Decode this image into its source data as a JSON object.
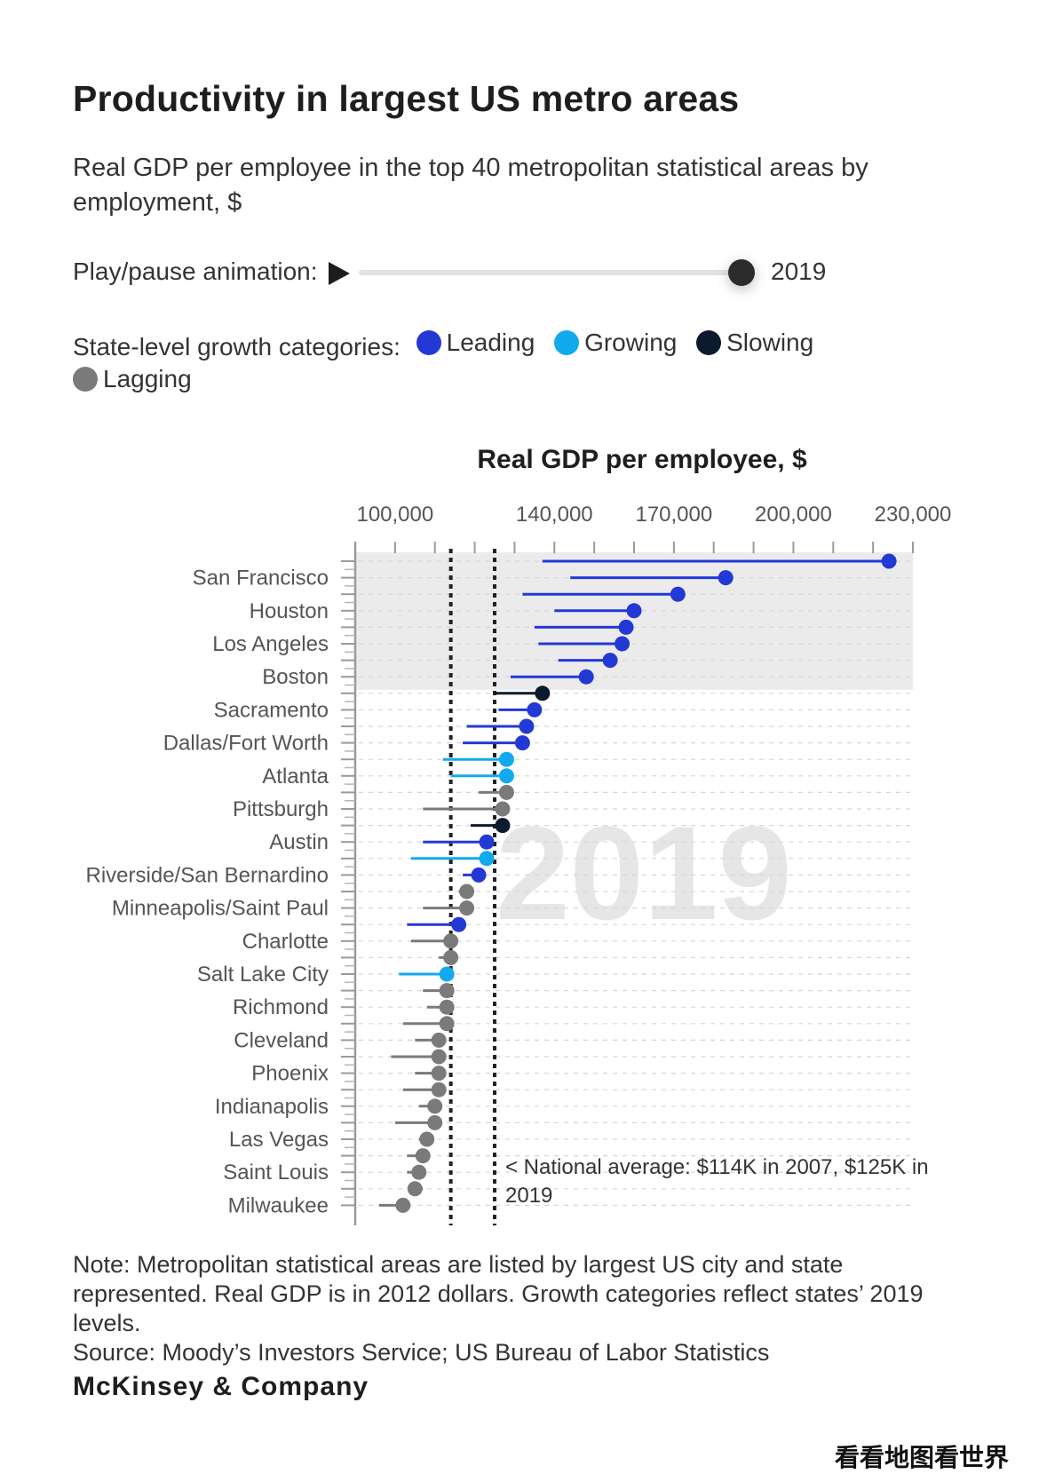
{
  "title": "Productivity in largest US metro areas",
  "subtitle": "Real GDP per employee in the top 40 metropolitan statistical areas by employment, $",
  "animation": {
    "label": "Play/pause animation:",
    "play_icon": "play-icon",
    "year": "2019",
    "progress": 1.0
  },
  "legend": {
    "label": "State-level growth categories:",
    "items": [
      {
        "name": "Leading",
        "color": "#2339d6"
      },
      {
        "name": "Growing",
        "color": "#12aaee"
      },
      {
        "name": "Slowing",
        "color": "#0c1a2e"
      },
      {
        "name": "Lagging",
        "color": "#7a7a7a"
      }
    ]
  },
  "chart_data": {
    "type": "dumbbell",
    "title": "Real GDP per employee, $",
    "xlim": [
      90000,
      230000
    ],
    "x_ticks": [
      {
        "value": 100000,
        "label": "100,000"
      },
      {
        "value": 140000,
        "label": "140,000"
      },
      {
        "value": 170000,
        "label": "170,000"
      },
      {
        "value": 200000,
        "label": "200,000"
      },
      {
        "value": 230000,
        "label": "230,000"
      }
    ],
    "background_year": "2019",
    "national_average": {
      "values": [
        114000,
        125000
      ],
      "annotation": "< National average: $114K in 2007, $125K in 2019"
    },
    "highlight_rows": 8,
    "rows": [
      {
        "label": "",
        "cat": "Leading",
        "start": 137000,
        "end": 224000
      },
      {
        "label": "San Francisco",
        "cat": "Leading",
        "start": 144000,
        "end": 183000
      },
      {
        "label": "",
        "cat": "Leading",
        "start": 132000,
        "end": 171000
      },
      {
        "label": "Houston",
        "cat": "Leading",
        "start": 140000,
        "end": 160000
      },
      {
        "label": "",
        "cat": "Leading",
        "start": 135000,
        "end": 158000
      },
      {
        "label": "Los Angeles",
        "cat": "Leading",
        "start": 136000,
        "end": 157000
      },
      {
        "label": "",
        "cat": "Leading",
        "start": 141000,
        "end": 154000
      },
      {
        "label": "Boston",
        "cat": "Leading",
        "start": 129000,
        "end": 148000
      },
      {
        "label": "",
        "cat": "Slowing",
        "start": 125000,
        "end": 137000
      },
      {
        "label": "Sacramento",
        "cat": "Leading",
        "start": 126000,
        "end": 135000
      },
      {
        "label": "",
        "cat": "Leading",
        "start": 118000,
        "end": 133000
      },
      {
        "label": "Dallas/Fort Worth",
        "cat": "Leading",
        "start": 117000,
        "end": 132000
      },
      {
        "label": "",
        "cat": "Growing",
        "start": 112000,
        "end": 128000
      },
      {
        "label": "Atlanta",
        "cat": "Growing",
        "start": 114000,
        "end": 128000
      },
      {
        "label": "",
        "cat": "Lagging",
        "start": 121000,
        "end": 128000
      },
      {
        "label": "Pittsburgh",
        "cat": "Lagging",
        "start": 107000,
        "end": 127000
      },
      {
        "label": "",
        "cat": "Slowing",
        "start": 119000,
        "end": 127000
      },
      {
        "label": "Austin",
        "cat": "Leading",
        "start": 107000,
        "end": 123000
      },
      {
        "label": "",
        "cat": "Growing",
        "start": 104000,
        "end": 123000
      },
      {
        "label": "Riverside/San Bernardino",
        "cat": "Leading",
        "start": 117000,
        "end": 121000
      },
      {
        "label": "",
        "cat": "Lagging",
        "start": 116000,
        "end": 118000
      },
      {
        "label": "Minneapolis/Saint Paul",
        "cat": "Lagging",
        "start": 107000,
        "end": 118000
      },
      {
        "label": "",
        "cat": "Leading",
        "start": 103000,
        "end": 116000
      },
      {
        "label": "Charlotte",
        "cat": "Lagging",
        "start": 104000,
        "end": 114000
      },
      {
        "label": "",
        "cat": "Lagging",
        "start": 111000,
        "end": 114000
      },
      {
        "label": "Salt Lake City",
        "cat": "Growing",
        "start": 101000,
        "end": 113000
      },
      {
        "label": "",
        "cat": "Lagging",
        "start": 107000,
        "end": 113000
      },
      {
        "label": "Richmond",
        "cat": "Lagging",
        "start": 108000,
        "end": 113000
      },
      {
        "label": "",
        "cat": "Lagging",
        "start": 102000,
        "end": 113000
      },
      {
        "label": "Cleveland",
        "cat": "Lagging",
        "start": 105000,
        "end": 111000
      },
      {
        "label": "",
        "cat": "Lagging",
        "start": 99000,
        "end": 111000
      },
      {
        "label": "Phoenix",
        "cat": "Lagging",
        "start": 105000,
        "end": 111000
      },
      {
        "label": "",
        "cat": "Lagging",
        "start": 102000,
        "end": 111000
      },
      {
        "label": "Indianapolis",
        "cat": "Lagging",
        "start": 106000,
        "end": 110000
      },
      {
        "label": "",
        "cat": "Lagging",
        "start": 100000,
        "end": 110000
      },
      {
        "label": "Las Vegas",
        "cat": "Lagging",
        "start": 106000,
        "end": 108000
      },
      {
        "label": "",
        "cat": "Lagging",
        "start": 103000,
        "end": 107000
      },
      {
        "label": "Saint Louis",
        "cat": "Lagging",
        "start": 103000,
        "end": 106000
      },
      {
        "label": "",
        "cat": "Lagging",
        "start": 107000,
        "end": 105000
      },
      {
        "label": "Milwaukee",
        "cat": "Lagging",
        "start": 96000,
        "end": 102000
      }
    ]
  },
  "footer": {
    "note": "Note: Metropolitan statistical areas are listed by largest US city and state represented. Real GDP is in 2012 dollars. Growth categories reflect states’ 2019 levels.",
    "source": "Source: Moody’s Investors Service; US Bureau of Labor Statistics"
  },
  "brand": "McKinsey & Company",
  "watermark": "看看地图看世界"
}
